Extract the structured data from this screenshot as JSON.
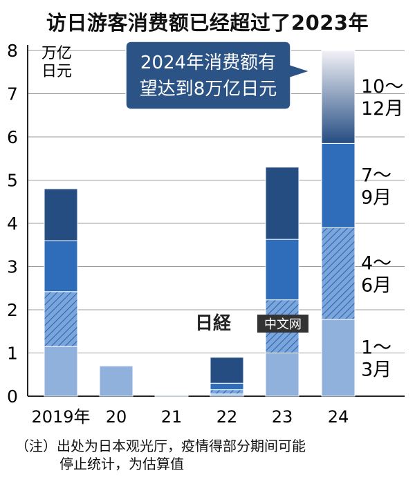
{
  "title": "访日游客消费额已经超过了2023年",
  "chart_data": {
    "type": "bar",
    "stacked": true,
    "title": "访日游客消费额已经超过了2023年",
    "unit_label": [
      "万亿",
      "日元"
    ],
    "categories": [
      "2019年",
      "20",
      "21",
      "22",
      "23",
      "24"
    ],
    "ylim": [
      0,
      8
    ],
    "yticks": [
      0,
      1,
      2,
      3,
      4,
      5,
      6,
      7,
      8
    ],
    "grid": true,
    "series": [
      {
        "name": "1～3月",
        "label_lines": [
          "1～",
          "3月"
        ],
        "color": "#8fb1dc",
        "pattern": "none",
        "values": [
          1.15,
          0.7,
          0.02,
          0.05,
          1.0,
          1.78
        ]
      },
      {
        "name": "4～6月",
        "label_lines": [
          "4～",
          "6月"
        ],
        "color": "#5b8fd4",
        "pattern": "hatch",
        "values": [
          1.27,
          0,
          0,
          0.1,
          1.23,
          2.12
        ]
      },
      {
        "name": "7～9月",
        "label_lines": [
          "7～",
          "9月"
        ],
        "color": "#2f6cba",
        "pattern": "none",
        "values": [
          1.18,
          0,
          0,
          0.15,
          1.4,
          1.95
        ]
      },
      {
        "name": "10～12月",
        "label_lines": [
          "10～",
          "12月"
        ],
        "color": "#254d82",
        "pattern": "none",
        "values": [
          1.2,
          0,
          0,
          0.6,
          1.67,
          2.15
        ]
      }
    ],
    "last_bar_gradient_to": "#f2f2f7",
    "callout": [
      "2024年消费额有",
      "望达到8万亿日元"
    ],
    "watermark": [
      "日経",
      "中文网"
    ]
  },
  "note": {
    "prefix": "（注）",
    "line1": "出处为日本观光厅，疫情得部分期间可能",
    "line2": "停止统计，为估算值"
  }
}
